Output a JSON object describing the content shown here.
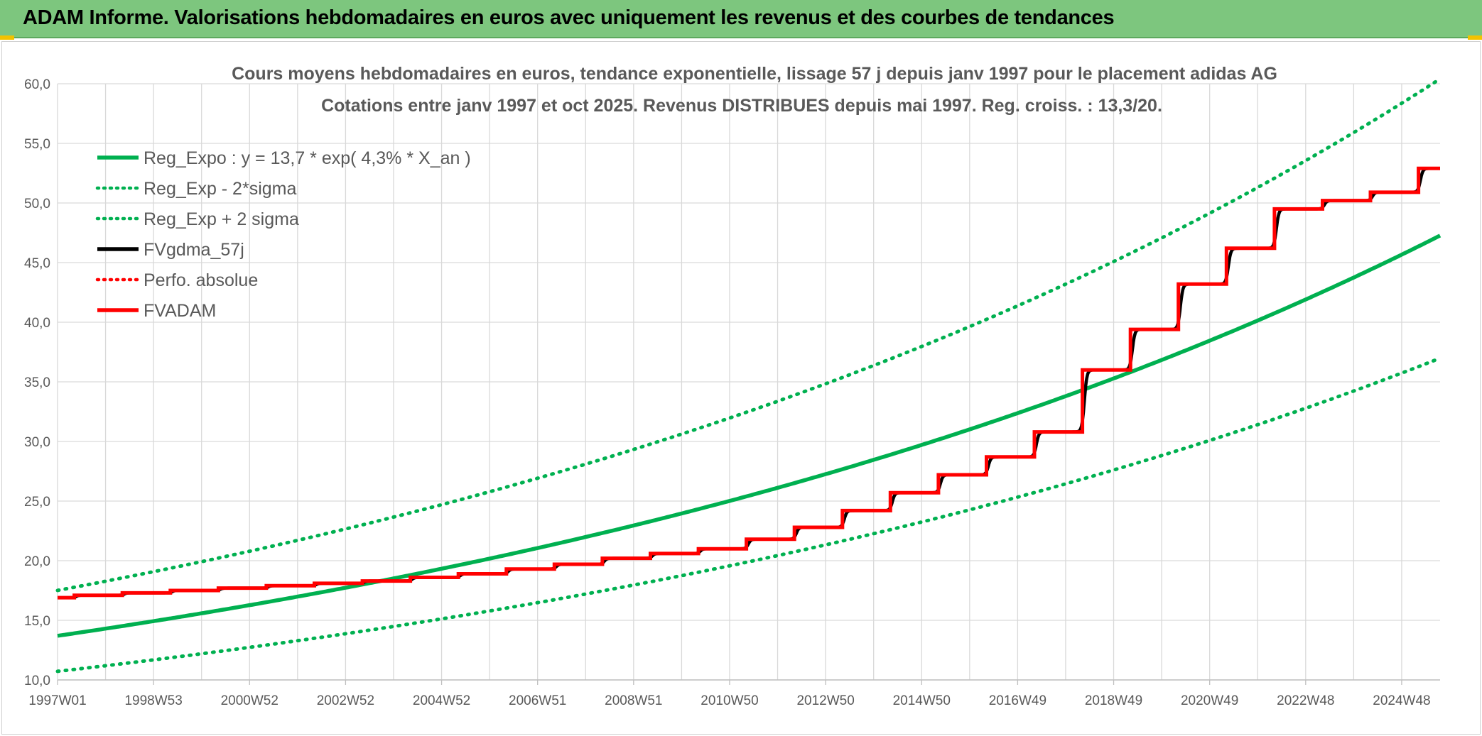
{
  "header": {
    "title": "ADAM Informe. Valorisations hebdomadaires en euros avec uniquement les revenus et des courbes de tendances"
  },
  "colors": {
    "header_bg": "#7dc67e",
    "green": "#00b050",
    "red": "#ff0000",
    "black": "#000000",
    "accent": "#f2c200"
  },
  "chart_data": {
    "type": "line",
    "title_lines": [
      "Cours moyens hebdomadaires en euros, tendance exponentielle, lissage 57 j depuis janv 1997 pour le placement adidas AG",
      "Cotations entre janv 1997 et oct 2025. Revenus DISTRIBUES depuis mai 1997. Reg. croiss. : 13,3/20."
    ],
    "ylim": [
      10,
      60
    ],
    "y_ticks": [
      "10,0",
      "15,0",
      "20,0",
      "25,0",
      "30,0",
      "35,0",
      "40,0",
      "45,0",
      "50,0",
      "55,0",
      "60,0"
    ],
    "x_range": [
      1997.0,
      2025.8
    ],
    "x_ticks": [
      {
        "label": "1997W01",
        "x": 1997.0
      },
      {
        "label": "1998W53",
        "x": 1999.0
      },
      {
        "label": "2000W52",
        "x": 2001.0
      },
      {
        "label": "2002W52",
        "x": 2003.0
      },
      {
        "label": "2004W52",
        "x": 2005.0
      },
      {
        "label": "2006W51",
        "x": 2007.0
      },
      {
        "label": "2008W51",
        "x": 2009.0
      },
      {
        "label": "2010W50",
        "x": 2011.0
      },
      {
        "label": "2012W50",
        "x": 2013.0
      },
      {
        "label": "2014W50",
        "x": 2015.0
      },
      {
        "label": "2016W49",
        "x": 2017.0
      },
      {
        "label": "2018W49",
        "x": 2019.0
      },
      {
        "label": "2020W49",
        "x": 2021.0
      },
      {
        "label": "2022W48",
        "x": 2023.0
      },
      {
        "label": "2024W48",
        "x": 2025.0
      }
    ],
    "grid": true,
    "legend_position": "top-left",
    "regression": {
      "a": 13.7,
      "growth": 0.043,
      "sigma_factor": 1.278
    },
    "series": [
      {
        "name": "Reg_Expo : y = 13,7 * exp( 4,3% *  X_an )",
        "style": "solid",
        "color": "#00b050",
        "kind": "reg"
      },
      {
        "name": "Reg_Exp - 2*sigma",
        "style": "dotted",
        "color": "#00b050",
        "kind": "reg_low"
      },
      {
        "name": "Reg_Exp + 2 sigma",
        "style": "dotted",
        "color": "#00b050",
        "kind": "reg_high"
      },
      {
        "name": "FVgdma_57j",
        "style": "solid",
        "color": "#000000",
        "kind": "smooth"
      },
      {
        "name": "Perfo. absolue",
        "style": "dotted",
        "color": "#ff0000",
        "kind": "none"
      },
      {
        "name": "FVADAM",
        "style": "solid",
        "color": "#ff0000",
        "kind": "step"
      }
    ],
    "fvadam_steps": [
      {
        "x": 1997.0,
        "y": 16.9
      },
      {
        "x": 1997.35,
        "y": 17.1
      },
      {
        "x": 1998.35,
        "y": 17.3
      },
      {
        "x": 1999.35,
        "y": 17.5
      },
      {
        "x": 2000.35,
        "y": 17.7
      },
      {
        "x": 2001.35,
        "y": 17.9
      },
      {
        "x": 2002.35,
        "y": 18.1
      },
      {
        "x": 2003.35,
        "y": 18.3
      },
      {
        "x": 2004.35,
        "y": 18.6
      },
      {
        "x": 2005.35,
        "y": 18.9
      },
      {
        "x": 2006.35,
        "y": 19.3
      },
      {
        "x": 2007.35,
        "y": 19.7
      },
      {
        "x": 2008.35,
        "y": 20.2
      },
      {
        "x": 2009.35,
        "y": 20.6
      },
      {
        "x": 2010.35,
        "y": 21.0
      },
      {
        "x": 2011.35,
        "y": 21.8
      },
      {
        "x": 2012.35,
        "y": 22.8
      },
      {
        "x": 2013.35,
        "y": 24.2
      },
      {
        "x": 2014.35,
        "y": 25.7
      },
      {
        "x": 2015.35,
        "y": 27.2
      },
      {
        "x": 2016.35,
        "y": 28.7
      },
      {
        "x": 2017.35,
        "y": 30.8
      },
      {
        "x": 2018.35,
        "y": 36.0
      },
      {
        "x": 2019.35,
        "y": 39.4
      },
      {
        "x": 2020.35,
        "y": 43.2
      },
      {
        "x": 2021.35,
        "y": 46.2
      },
      {
        "x": 2022.35,
        "y": 49.5
      },
      {
        "x": 2023.35,
        "y": 50.2
      },
      {
        "x": 2024.35,
        "y": 50.9
      },
      {
        "x": 2025.35,
        "y": 52.9
      }
    ],
    "x_end": 2025.8
  }
}
